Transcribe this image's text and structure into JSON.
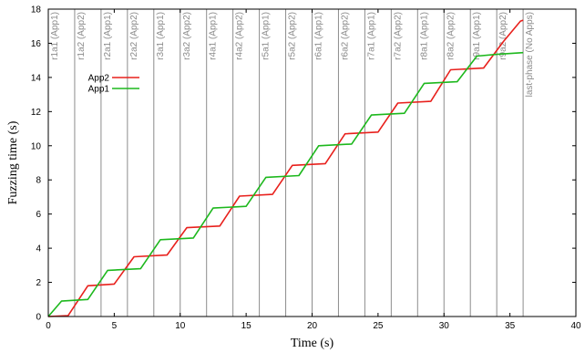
{
  "chart_data": {
    "type": "line",
    "xlabel": "Time (s)",
    "ylabel": "Fuzzing time (s)",
    "xlim": [
      0,
      40
    ],
    "ylim": [
      0,
      18
    ],
    "x_ticks": [
      0,
      5,
      10,
      15,
      20,
      25,
      30,
      35,
      40
    ],
    "y_ticks": [
      0,
      2,
      4,
      6,
      8,
      10,
      12,
      14,
      16,
      18
    ],
    "legend_position": "top-left",
    "phase_lines": [
      {
        "x": 0,
        "label": "r1a1 (App1)"
      },
      {
        "x": 2,
        "label": "r1a2 (App2)"
      },
      {
        "x": 4,
        "label": "r2a1 (App1)"
      },
      {
        "x": 6,
        "label": "r2a2 (App2)"
      },
      {
        "x": 8,
        "label": "r3a1 (App1)"
      },
      {
        "x": 10,
        "label": "r3a2 (App2)"
      },
      {
        "x": 12,
        "label": "r4a1 (App1)"
      },
      {
        "x": 14,
        "label": "r4a2 (App2)"
      },
      {
        "x": 16,
        "label": "r5a1 (App1)"
      },
      {
        "x": 18,
        "label": "r5a2 (App2)"
      },
      {
        "x": 20,
        "label": "r6a1 (App1)"
      },
      {
        "x": 22,
        "label": "r6a2 (App2)"
      },
      {
        "x": 24,
        "label": "r7a1 (App1)"
      },
      {
        "x": 26,
        "label": "r7a2 (App2)"
      },
      {
        "x": 28,
        "label": "r8a1 (App1)"
      },
      {
        "x": 30,
        "label": "r8a2 (App2)"
      },
      {
        "x": 32,
        "label": "r9a1 (App1)"
      },
      {
        "x": 34,
        "label": "r9a2 (App2)"
      },
      {
        "x": 36,
        "label": "last-phase (No Apps)"
      }
    ],
    "series": [
      {
        "name": "App2",
        "color": "#e8201c",
        "points": [
          [
            0,
            0
          ],
          [
            1.5,
            0.05
          ],
          [
            3,
            1.8
          ],
          [
            5,
            1.9
          ],
          [
            6.5,
            3.5
          ],
          [
            9,
            3.6
          ],
          [
            10.5,
            5.2
          ],
          [
            13,
            5.3
          ],
          [
            14.5,
            7.05
          ],
          [
            17,
            7.15
          ],
          [
            18.5,
            8.85
          ],
          [
            21,
            8.95
          ],
          [
            22.5,
            10.7
          ],
          [
            25,
            10.8
          ],
          [
            26.5,
            12.5
          ],
          [
            29,
            12.6
          ],
          [
            30.5,
            14.45
          ],
          [
            33,
            14.55
          ],
          [
            34.5,
            16.1
          ],
          [
            35.8,
            17.3
          ],
          [
            36,
            17.35
          ]
        ]
      },
      {
        "name": "App1",
        "color": "#1db81d",
        "points": [
          [
            0,
            0
          ],
          [
            1,
            0.9
          ],
          [
            3,
            1.0
          ],
          [
            4.5,
            2.7
          ],
          [
            7,
            2.8
          ],
          [
            8.5,
            4.5
          ],
          [
            11,
            4.6
          ],
          [
            12.5,
            6.35
          ],
          [
            15,
            6.45
          ],
          [
            16.5,
            8.15
          ],
          [
            19,
            8.25
          ],
          [
            20.5,
            10.0
          ],
          [
            23,
            10.1
          ],
          [
            24.5,
            11.8
          ],
          [
            27,
            11.9
          ],
          [
            28.5,
            13.65
          ],
          [
            31,
            13.75
          ],
          [
            32.5,
            15.25
          ],
          [
            34,
            15.35
          ],
          [
            36,
            15.45
          ]
        ]
      }
    ]
  }
}
